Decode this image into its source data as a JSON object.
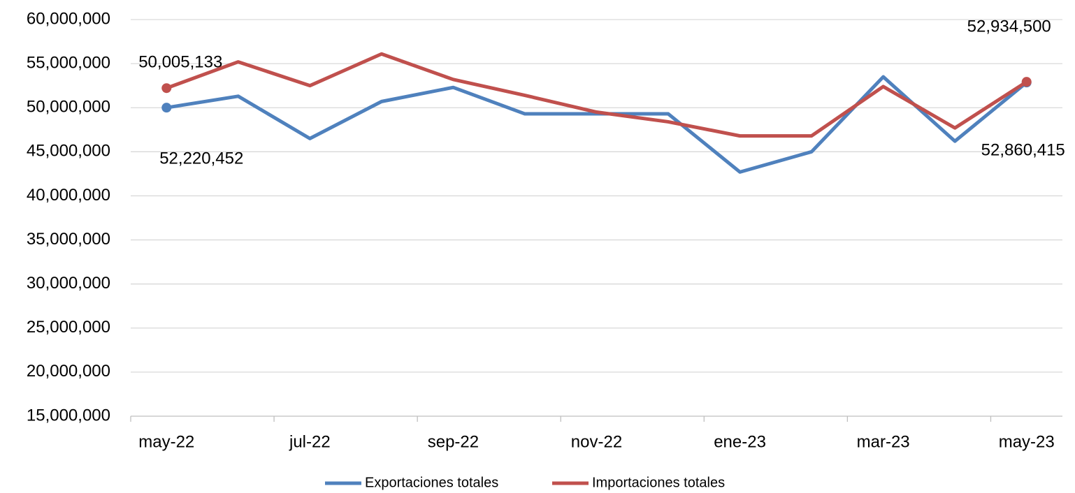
{
  "chart_data": {
    "type": "line",
    "categories": [
      "may-22",
      null,
      "jul-22",
      null,
      "sep-22",
      null,
      "nov-22",
      null,
      "ene-23",
      null,
      "mar-23",
      null,
      "may-23"
    ],
    "series": [
      {
        "name": "Exportaciones totales",
        "color": "#4f81bd",
        "values": [
          50005133,
          51300000,
          46500000,
          50700000,
          52300000,
          49300000,
          49300000,
          49300000,
          42700000,
          45000000,
          53500000,
          46200000,
          52860415
        ],
        "value_labels": [
          "50,005,133",
          null,
          null,
          null,
          null,
          null,
          null,
          null,
          null,
          null,
          null,
          null,
          "52,860,415"
        ]
      },
      {
        "name": "Importaciones totales",
        "color": "#c0504d",
        "values": [
          52220452,
          55200000,
          52500000,
          56100000,
          53200000,
          51400000,
          49500000,
          48400000,
          46800000,
          46800000,
          52400000,
          47700000,
          52934500
        ],
        "value_labels": [
          "52,220,452",
          null,
          null,
          null,
          null,
          null,
          null,
          null,
          null,
          null,
          null,
          null,
          "52,934,500"
        ]
      }
    ],
    "ylim": [
      15000000,
      60000000
    ],
    "yticks": [
      {
        "value": 15000000,
        "label": "15,000,000"
      },
      {
        "value": 20000000,
        "label": "20,000,000"
      },
      {
        "value": 25000000,
        "label": "25,000,000"
      },
      {
        "value": 30000000,
        "label": "30,000,000"
      },
      {
        "value": 35000000,
        "label": "35,000,000"
      },
      {
        "value": 40000000,
        "label": "40,000,000"
      },
      {
        "value": 45000000,
        "label": "45,000,000"
      },
      {
        "value": 50000000,
        "label": "50,000,000"
      },
      {
        "value": 55000000,
        "label": "55,000,000"
      },
      {
        "value": 60000000,
        "label": "60,000,000"
      }
    ],
    "grid": true,
    "legend": "bottom"
  }
}
